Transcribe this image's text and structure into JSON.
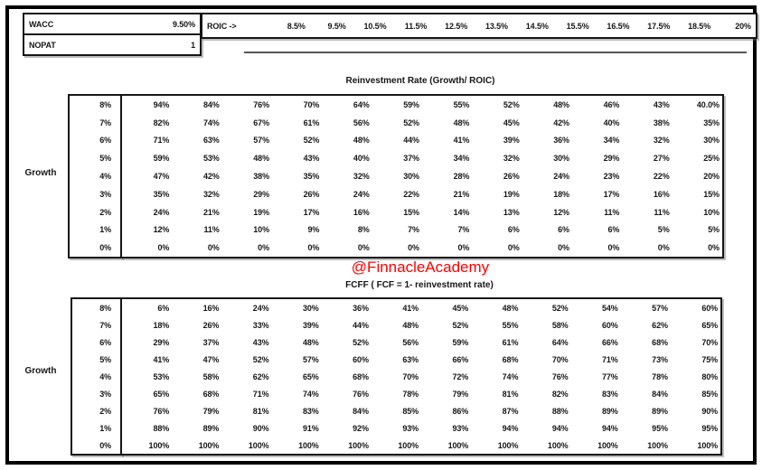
{
  "panel": {
    "wacc": {
      "label": "WACC",
      "value": "9.50%"
    },
    "nopat": {
      "label": "NOPAT",
      "value": "1"
    }
  },
  "roic_header": {
    "label": "ROIC ->",
    "values": [
      "8.5%",
      "9.5%",
      "10.5%",
      "11.5%",
      "12.5%",
      "13.5%",
      "14.5%",
      "15.5%",
      "16.5%",
      "17.5%",
      "18.5%",
      "20%"
    ]
  },
  "watermark": {
    "text": "@FinnacleAcademy",
    "color": "#ff0000"
  },
  "chart_data": [
    {
      "type": "table",
      "title": "Reinvestment Rate (Growth/ ROIC)",
      "row_axis_label": "Growth",
      "columns_label": "ROIC ->",
      "columns": [
        "8.5%",
        "9.5%",
        "10.5%",
        "11.5%",
        "12.5%",
        "13.5%",
        "14.5%",
        "15.5%",
        "16.5%",
        "17.5%",
        "18.5%",
        "20%"
      ],
      "row_labels": [
        "8%",
        "7%",
        "6%",
        "5%",
        "4%",
        "3%",
        "2%",
        "1%",
        "0%"
      ],
      "rows": [
        [
          "94%",
          "84%",
          "76%",
          "70%",
          "64%",
          "59%",
          "55%",
          "52%",
          "48%",
          "46%",
          "43%",
          "40.0%"
        ],
        [
          "82%",
          "74%",
          "67%",
          "61%",
          "56%",
          "52%",
          "48%",
          "45%",
          "42%",
          "40%",
          "38%",
          "35%"
        ],
        [
          "71%",
          "63%",
          "57%",
          "52%",
          "48%",
          "44%",
          "41%",
          "39%",
          "36%",
          "34%",
          "32%",
          "30%"
        ],
        [
          "59%",
          "53%",
          "48%",
          "43%",
          "40%",
          "37%",
          "34%",
          "32%",
          "30%",
          "29%",
          "27%",
          "25%"
        ],
        [
          "47%",
          "42%",
          "38%",
          "35%",
          "32%",
          "30%",
          "28%",
          "26%",
          "24%",
          "23%",
          "22%",
          "20%"
        ],
        [
          "35%",
          "32%",
          "29%",
          "26%",
          "24%",
          "22%",
          "21%",
          "19%",
          "18%",
          "17%",
          "16%",
          "15%"
        ],
        [
          "24%",
          "21%",
          "19%",
          "17%",
          "16%",
          "15%",
          "14%",
          "13%",
          "12%",
          "11%",
          "11%",
          "10%"
        ],
        [
          "12%",
          "11%",
          "10%",
          "9%",
          "8%",
          "7%",
          "7%",
          "6%",
          "6%",
          "6%",
          "5%",
          "5%"
        ],
        [
          "0%",
          "0%",
          "0%",
          "0%",
          "0%",
          "0%",
          "0%",
          "0%",
          "0%",
          "0%",
          "0%",
          "0%"
        ]
      ]
    },
    {
      "type": "table",
      "title": "FCFF ( FCF = 1- reinvestment rate)",
      "row_axis_label": "Growth",
      "columns_label": "ROIC ->",
      "columns": [
        "8.5%",
        "9.5%",
        "10.5%",
        "11.5%",
        "12.5%",
        "13.5%",
        "14.5%",
        "15.5%",
        "16.5%",
        "17.5%",
        "18.5%",
        "20%"
      ],
      "row_labels": [
        "8%",
        "7%",
        "6%",
        "5%",
        "4%",
        "3%",
        "2%",
        "1%",
        "0%"
      ],
      "rows": [
        [
          "6%",
          "16%",
          "24%",
          "30%",
          "36%",
          "41%",
          "45%",
          "48%",
          "52%",
          "54%",
          "57%",
          "60%"
        ],
        [
          "18%",
          "26%",
          "33%",
          "39%",
          "44%",
          "48%",
          "52%",
          "55%",
          "58%",
          "60%",
          "62%",
          "65%"
        ],
        [
          "29%",
          "37%",
          "43%",
          "48%",
          "52%",
          "56%",
          "59%",
          "61%",
          "64%",
          "66%",
          "68%",
          "70%"
        ],
        [
          "41%",
          "47%",
          "52%",
          "57%",
          "60%",
          "63%",
          "66%",
          "68%",
          "70%",
          "71%",
          "73%",
          "75%"
        ],
        [
          "53%",
          "58%",
          "62%",
          "65%",
          "68%",
          "70%",
          "72%",
          "74%",
          "76%",
          "77%",
          "78%",
          "80%"
        ],
        [
          "65%",
          "68%",
          "71%",
          "74%",
          "76%",
          "78%",
          "79%",
          "81%",
          "82%",
          "83%",
          "84%",
          "85%"
        ],
        [
          "76%",
          "79%",
          "81%",
          "83%",
          "84%",
          "85%",
          "86%",
          "87%",
          "88%",
          "89%",
          "89%",
          "90%"
        ],
        [
          "88%",
          "89%",
          "90%",
          "91%",
          "92%",
          "93%",
          "93%",
          "94%",
          "94%",
          "94%",
          "95%",
          "95%"
        ],
        [
          "100%",
          "100%",
          "100%",
          "100%",
          "100%",
          "100%",
          "100%",
          "100%",
          "100%",
          "100%",
          "100%",
          "100%"
        ]
      ]
    }
  ]
}
